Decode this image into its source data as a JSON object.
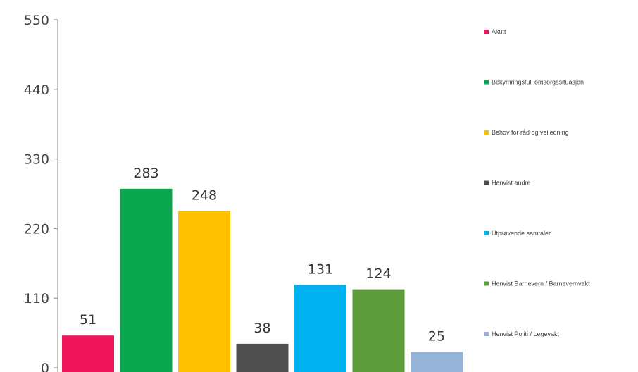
{
  "chart_data": {
    "type": "bar",
    "categories": [
      "Akutt",
      "Bekymringsfull omsorgssituasjon",
      "Behov for råd og veiledning",
      "Henvist andre",
      "Utprøvende samtaler",
      "Henvist Barnevern / Barnevernvakt",
      "Henvist Politi / Legevakt"
    ],
    "values": [
      51,
      283,
      248,
      38,
      131,
      124,
      25
    ],
    "colors": [
      "#f0145a",
      "#0aa64f",
      "#ffc000",
      "#505050",
      "#00b0f0",
      "#5e9b3b",
      "#95b3d7"
    ],
    "ylim": [
      0,
      550
    ],
    "yticks": [
      0,
      110,
      220,
      330,
      440,
      550
    ],
    "grid": false,
    "legend": "right",
    "data_labels": true
  }
}
